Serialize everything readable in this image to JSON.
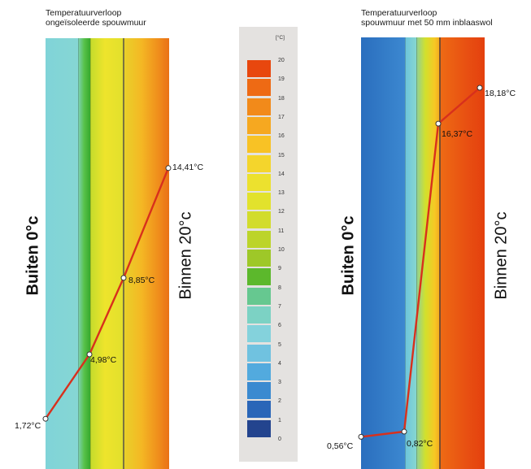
{
  "left_panel": {
    "title_line1": "Temperatuurverloop",
    "title_line2": "ongeïsoleerde spouwmuur",
    "outside_label": "Buiten 0°c",
    "inside_label": "Binnen 20°c",
    "points": [
      {
        "label": "1,72°C",
        "value": 1.72
      },
      {
        "label": "4,98°C",
        "value": 4.98
      },
      {
        "label": "8,85°C",
        "value": 8.85
      },
      {
        "label": "14,41°C",
        "value": 14.41
      }
    ]
  },
  "right_panel": {
    "title_line1": "Temperatuurverloop",
    "title_line2": "spouwmuur met 50 mm inblaaswol",
    "outside_label": "Buiten 0°c",
    "inside_label": "Binnen 20°c",
    "points": [
      {
        "label": "0,56°C",
        "value": 0.56
      },
      {
        "label": "0,82°C",
        "value": 0.82
      },
      {
        "label": "16,37°C",
        "value": 16.37
      },
      {
        "label": "18,18°C",
        "value": 18.18
      }
    ]
  },
  "legend": {
    "unit": "[°C]",
    "ticks": [
      "20",
      "19",
      "18",
      "17",
      "16",
      "15",
      "14",
      "13",
      "12",
      "11",
      "10",
      "9",
      "8",
      "7",
      "6",
      "5",
      "4",
      "3",
      "2",
      "1",
      "0"
    ],
    "colors": [
      "#e8470e",
      "#ee6a14",
      "#f28a1a",
      "#f6a820",
      "#f8c225",
      "#f4d52c",
      "#ece12e",
      "#e2e22c",
      "#d2dc2c",
      "#bcd42a",
      "#9ec828",
      "#5cb82c",
      "#66c890",
      "#7cd2c4",
      "#84d2dc",
      "#70c2e0",
      "#52aade",
      "#3a8ad0",
      "#2a66b8",
      "#23448e"
    ]
  },
  "line_color": "#d8301c"
}
